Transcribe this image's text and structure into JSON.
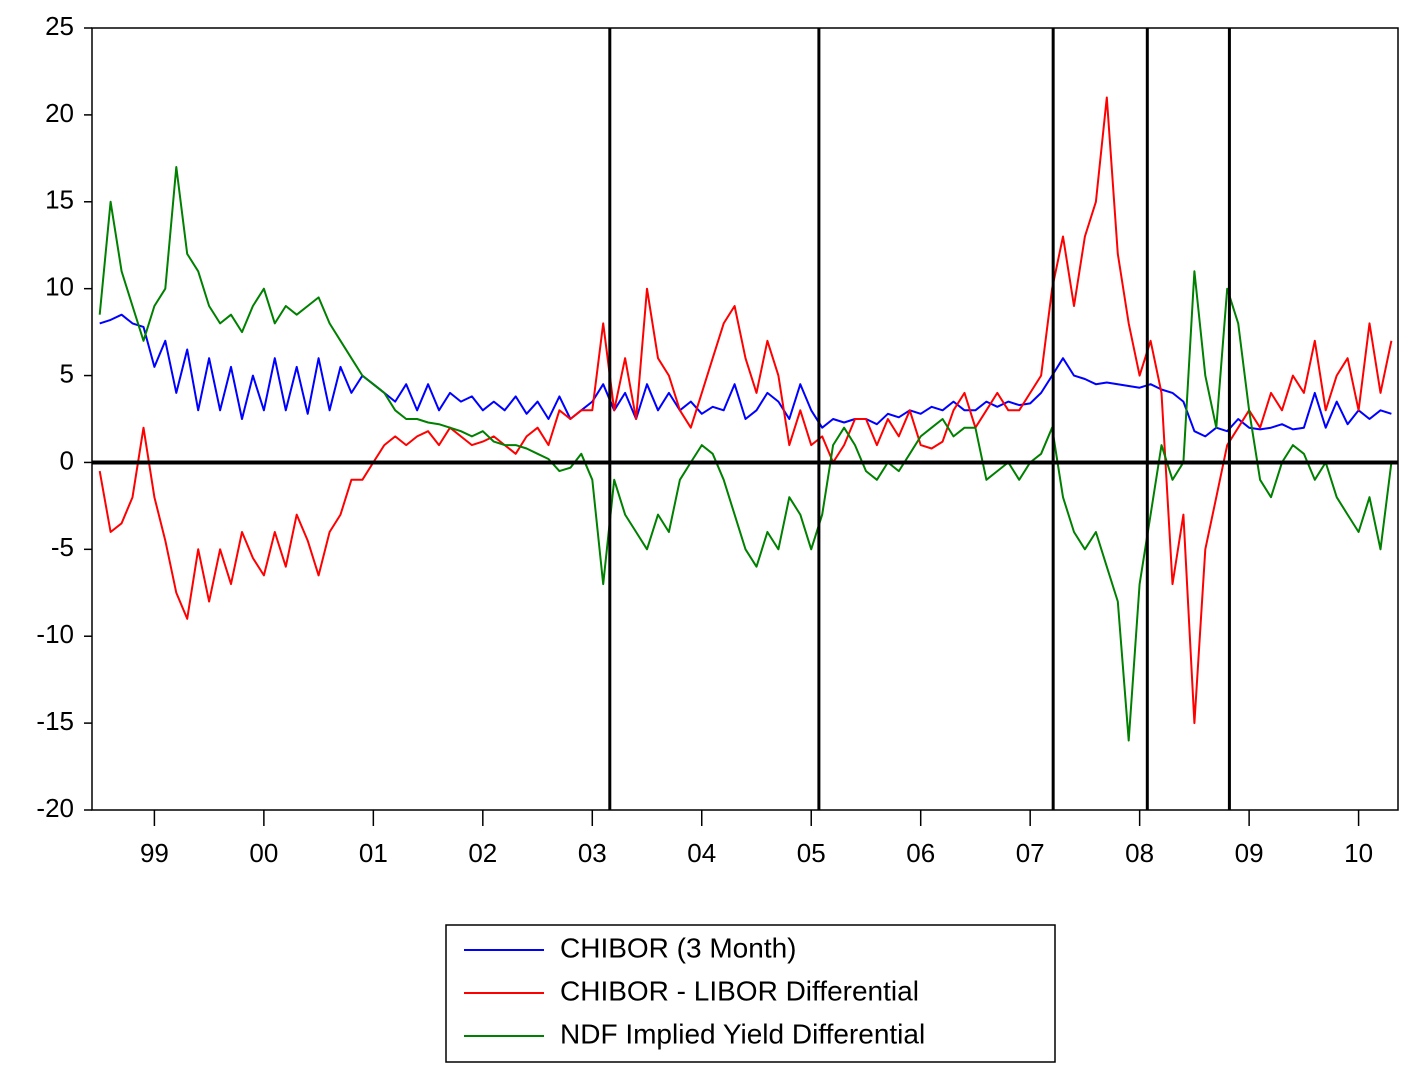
{
  "chart_data": {
    "type": "line",
    "x": [
      1999.0,
      1999.1,
      1999.2,
      1999.3,
      1999.4,
      1999.5,
      1999.6,
      1999.7,
      1999.8,
      1999.9,
      2000.0,
      2000.1,
      2000.2,
      2000.3,
      2000.4,
      2000.5,
      2000.6,
      2000.7,
      2000.8,
      2000.9,
      2001.0,
      2001.1,
      2001.2,
      2001.3,
      2001.4,
      2001.5,
      2001.6,
      2001.7,
      2001.8,
      2001.9,
      2002.0,
      2002.1,
      2002.2,
      2002.3,
      2002.4,
      2002.5,
      2002.6,
      2002.7,
      2002.8,
      2002.9,
      2003.0,
      2003.1,
      2003.2,
      2003.3,
      2003.4,
      2003.5,
      2003.6,
      2003.7,
      2003.8,
      2003.9,
      2004.0,
      2004.1,
      2004.2,
      2004.3,
      2004.4,
      2004.5,
      2004.6,
      2004.7,
      2004.8,
      2004.9,
      2005.0,
      2005.1,
      2005.2,
      2005.3,
      2005.4,
      2005.5,
      2005.6,
      2005.7,
      2005.8,
      2005.9,
      2006.0,
      2006.1,
      2006.2,
      2006.3,
      2006.4,
      2006.5,
      2006.6,
      2006.7,
      2006.8,
      2006.9,
      2007.0,
      2007.1,
      2007.2,
      2007.3,
      2007.4,
      2007.5,
      2007.6,
      2007.7,
      2007.8,
      2007.9,
      2008.0,
      2008.1,
      2008.2,
      2008.3,
      2008.4,
      2008.5,
      2008.6,
      2008.7,
      2008.8,
      2008.9,
      2009.0,
      2009.1,
      2009.2,
      2009.3,
      2009.4,
      2009.5,
      2009.6,
      2009.7,
      2009.8,
      2009.9,
      2010.0,
      2010.1,
      2010.2,
      2010.3,
      2010.4,
      2010.5,
      2010.6,
      2010.7,
      2010.8
    ],
    "series": [
      {
        "name": "CHIBOR (3 Month)",
        "color": "#0000ff",
        "values": [
          8,
          8.2,
          8.5,
          8,
          7.8,
          5.5,
          7,
          4,
          6.5,
          3,
          6,
          3,
          5.5,
          2.5,
          5,
          3,
          6,
          3,
          5.5,
          2.8,
          6,
          3,
          5.5,
          4,
          5,
          4.5,
          4,
          3.5,
          4.5,
          3,
          4.5,
          3,
          4,
          3.5,
          3.8,
          3,
          3.5,
          3,
          3.8,
          2.8,
          3.5,
          2.5,
          3.8,
          2.5,
          3,
          3.5,
          4.5,
          3,
          4,
          2.5,
          4.5,
          3,
          4,
          3,
          3.5,
          2.8,
          3.2,
          3,
          4.5,
          2.5,
          3,
          4,
          3.5,
          2.5,
          4.5,
          3,
          2,
          2.5,
          2.3,
          2.5,
          2.5,
          2.2,
          2.8,
          2.6,
          3,
          2.8,
          3.2,
          3,
          3.5,
          3,
          3,
          3.5,
          3.2,
          3.5,
          3.3,
          3.4,
          4,
          5,
          6,
          5,
          4.8,
          4.5,
          4.6,
          4.5,
          4.4,
          4.3,
          4.5,
          4.2,
          4,
          3.5,
          1.8,
          1.5,
          2,
          1.8,
          2.5,
          2,
          1.9,
          2,
          2.2,
          1.9,
          2,
          4,
          2,
          3.5,
          2.2,
          3,
          2.5,
          3,
          2.8
        ]
      },
      {
        "name": "CHIBOR - LIBOR Differential",
        "color": "#ff0000",
        "values": [
          -0.5,
          -4,
          -3.5,
          -2,
          2,
          -2,
          -4.5,
          -7.5,
          -9,
          -5,
          -8,
          -5,
          -7,
          -4,
          -5.5,
          -6.5,
          -4,
          -6,
          -3,
          -4.5,
          -6.5,
          -4,
          -3,
          -1,
          -1,
          0,
          1,
          1.5,
          1,
          1.5,
          1.8,
          1,
          2,
          1.5,
          1,
          1.2,
          1.5,
          1,
          0.5,
          1.5,
          2,
          1,
          3,
          2.5,
          3,
          3,
          8,
          3,
          6,
          2.5,
          10,
          6,
          5,
          3,
          2,
          4,
          6,
          8,
          9,
          6,
          4,
          7,
          5,
          1,
          3,
          1,
          1.5,
          0,
          1,
          2.5,
          2.5,
          1,
          2.5,
          1.5,
          3,
          1,
          0.8,
          1.2,
          3,
          4,
          2,
          3,
          4,
          3,
          3,
          4,
          5,
          10,
          13,
          9,
          13,
          15,
          21,
          12,
          8,
          5,
          7,
          4,
          -7,
          -3,
          -15,
          -5,
          -2,
          1,
          2,
          3,
          2,
          4,
          3,
          5,
          4,
          7,
          3,
          5,
          6,
          3,
          8,
          4,
          7
        ]
      },
      {
        "name": "NDF Implied Yield Differential",
        "color": "#008000",
        "values": [
          8.5,
          15,
          11,
          9,
          7,
          9,
          10,
          17,
          12,
          11,
          9,
          8,
          8.5,
          7.5,
          9,
          10,
          8,
          9,
          8.5,
          9,
          9.5,
          8,
          7,
          6,
          5,
          4.5,
          4,
          3,
          2.5,
          2.5,
          2.3,
          2.2,
          2,
          1.8,
          1.5,
          1.8,
          1.2,
          1,
          1,
          0.8,
          0.5,
          0.2,
          -0.5,
          -0.3,
          0.5,
          -1,
          -7,
          -1,
          -3,
          -4,
          -5,
          -3,
          -4,
          -1,
          0,
          1,
          0.5,
          -1,
          -3,
          -5,
          -6,
          -4,
          -5,
          -2,
          -3,
          -5,
          -3,
          1,
          2,
          1,
          -0.5,
          -1,
          0,
          -0.5,
          0.5,
          1.5,
          2,
          2.5,
          1.5,
          2,
          2,
          -1,
          -0.5,
          0,
          -1,
          0,
          0.5,
          2,
          -2,
          -4,
          -5,
          -4,
          -6,
          -8,
          -16,
          -7,
          -3,
          1,
          -1,
          0,
          11,
          5,
          2,
          10,
          8,
          3,
          -1,
          -2,
          0,
          1,
          0.5,
          -1,
          0,
          -2,
          -3,
          -4,
          -2,
          -5,
          0
        ]
      }
    ],
    "xlim": [
      1998.93,
      2010.86
    ],
    "xticks": [
      {
        "value": 1999.5,
        "label": "99"
      },
      {
        "value": 2000.5,
        "label": "00"
      },
      {
        "value": 2001.5,
        "label": "01"
      },
      {
        "value": 2002.5,
        "label": "02"
      },
      {
        "value": 2003.5,
        "label": "03"
      },
      {
        "value": 2004.5,
        "label": "04"
      },
      {
        "value": 2005.5,
        "label": "05"
      },
      {
        "value": 2006.5,
        "label": "06"
      },
      {
        "value": 2007.5,
        "label": "07"
      },
      {
        "value": 2008.5,
        "label": "08"
      },
      {
        "value": 2009.5,
        "label": "09"
      },
      {
        "value": 2010.5,
        "label": "10"
      }
    ],
    "ylim": [
      -20,
      25
    ],
    "yticks": [
      -20,
      -15,
      -10,
      -5,
      0,
      5,
      10,
      15,
      20,
      25
    ],
    "vlines": [
      2003.66,
      2005.57,
      2007.71,
      2008.57,
      2009.32
    ],
    "hline": 0,
    "legend": "bottom"
  }
}
